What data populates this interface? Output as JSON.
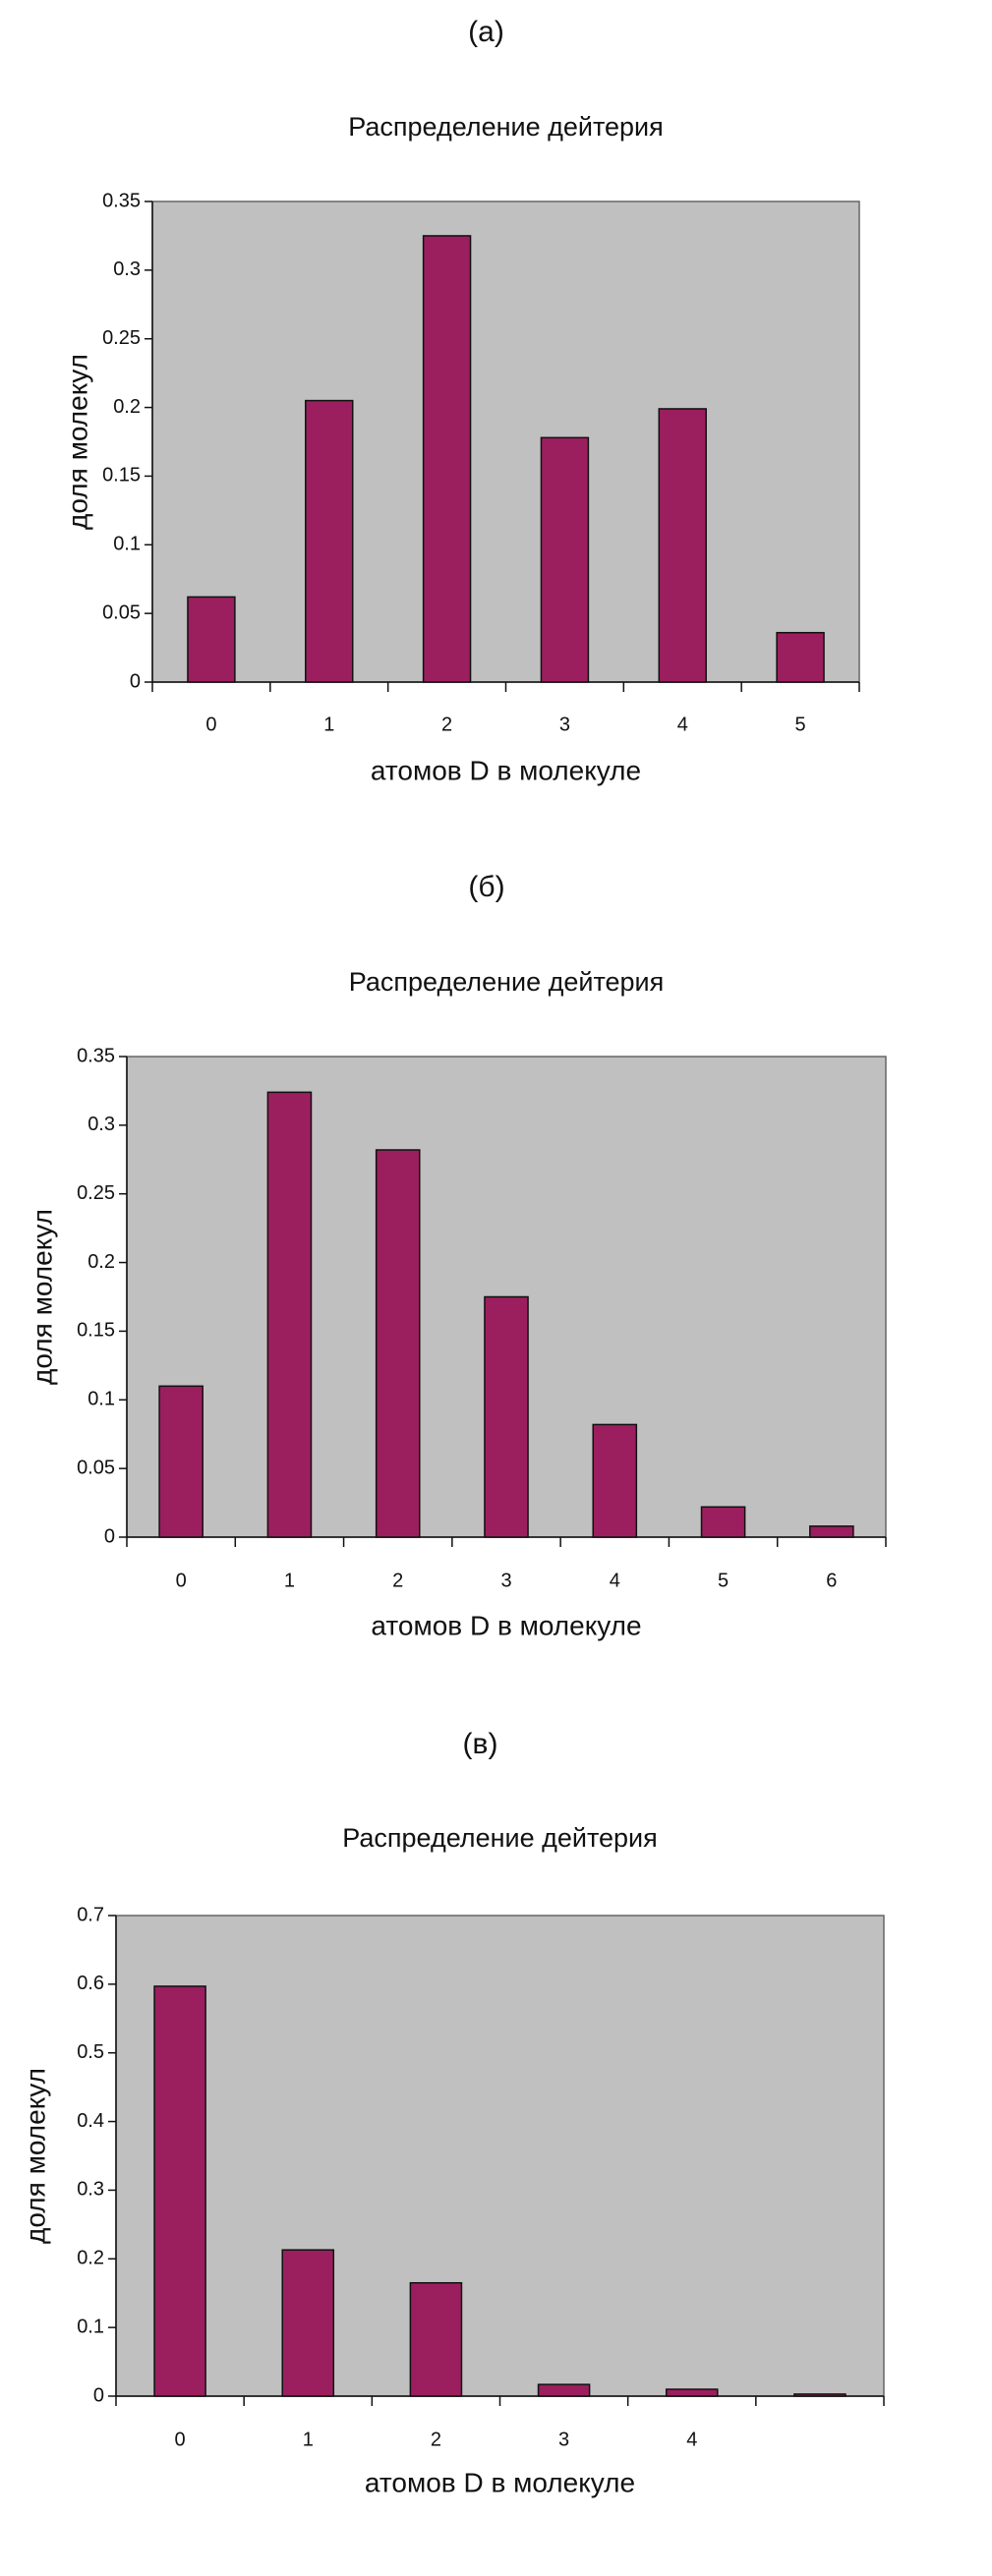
{
  "chart_data": [
    {
      "type": "bar",
      "panel": "(а)",
      "title": "Распределение дейтерия",
      "x_label": "атомов D в молекуле",
      "y_label": "доля молекул",
      "categories": [
        "0",
        "1",
        "2",
        "3",
        "4",
        "5"
      ],
      "values": [
        0.062,
        0.205,
        0.325,
        0.178,
        0.199,
        0.036
      ],
      "color": "#9b1f5e",
      "ylim": [
        0,
        0.35
      ],
      "yticks": [
        0,
        0.05,
        0.1,
        0.15,
        0.2,
        0.25,
        0.3,
        0.35
      ],
      "grid": false
    },
    {
      "type": "bar",
      "panel": "(б)",
      "title": "Распределение дейтерия",
      "x_label": "атомов D в молекуле",
      "y_label": "доля молекул",
      "categories": [
        "0",
        "1",
        "2",
        "3",
        "4",
        "5",
        "6"
      ],
      "values": [
        0.11,
        0.324,
        0.282,
        0.175,
        0.082,
        0.022,
        0.008
      ],
      "color": "#9b1f5e",
      "ylim": [
        0,
        0.35
      ],
      "yticks": [
        0,
        0.05,
        0.1,
        0.15,
        0.2,
        0.25,
        0.3,
        0.35
      ],
      "grid": false
    },
    {
      "type": "bar",
      "panel": "(в)",
      "title": "Распределение дейтерия",
      "x_label": "атомов D в молекуле",
      "y_label": "доля молекул",
      "categories": [
        "0",
        "1",
        "2",
        "3",
        "4",
        null
      ],
      "values": [
        0.597,
        0.213,
        0.165,
        0.017,
        0.01,
        0.003
      ],
      "color": "#9b1f5e",
      "ylim": [
        0,
        0.7
      ],
      "yticks": [
        0,
        0.1,
        0.2,
        0.3,
        0.4,
        0.5,
        0.6,
        0.7
      ],
      "grid": false
    }
  ]
}
